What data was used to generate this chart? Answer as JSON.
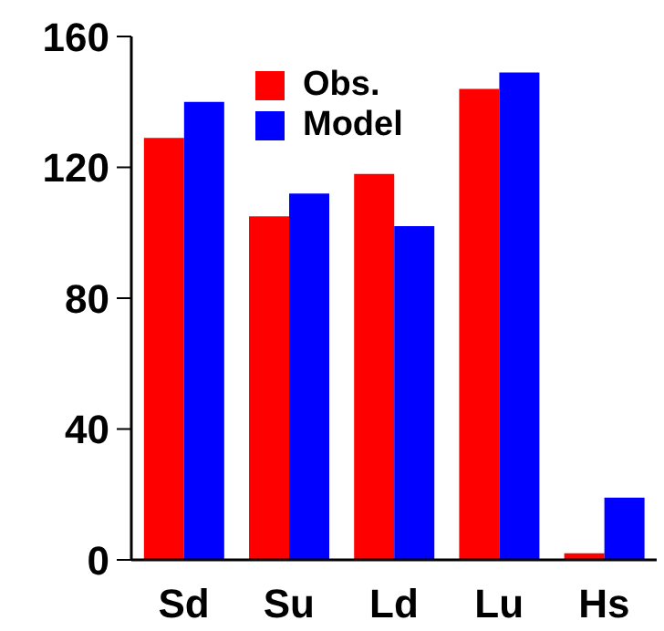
{
  "chart_data": {
    "type": "bar",
    "categories": [
      "Sd",
      "Su",
      "Ld",
      "Lu",
      "Hs"
    ],
    "series": [
      {
        "name": "Obs.",
        "color": "#ff0000",
        "values": [
          129,
          105,
          118,
          144,
          2
        ]
      },
      {
        "name": "Model",
        "color": "#0000ff",
        "values": [
          140,
          112,
          102,
          149,
          19
        ]
      }
    ],
    "ylim": [
      0,
      160
    ],
    "yticks": [
      0,
      40,
      80,
      120,
      160
    ],
    "legend": "top",
    "grid": false
  }
}
